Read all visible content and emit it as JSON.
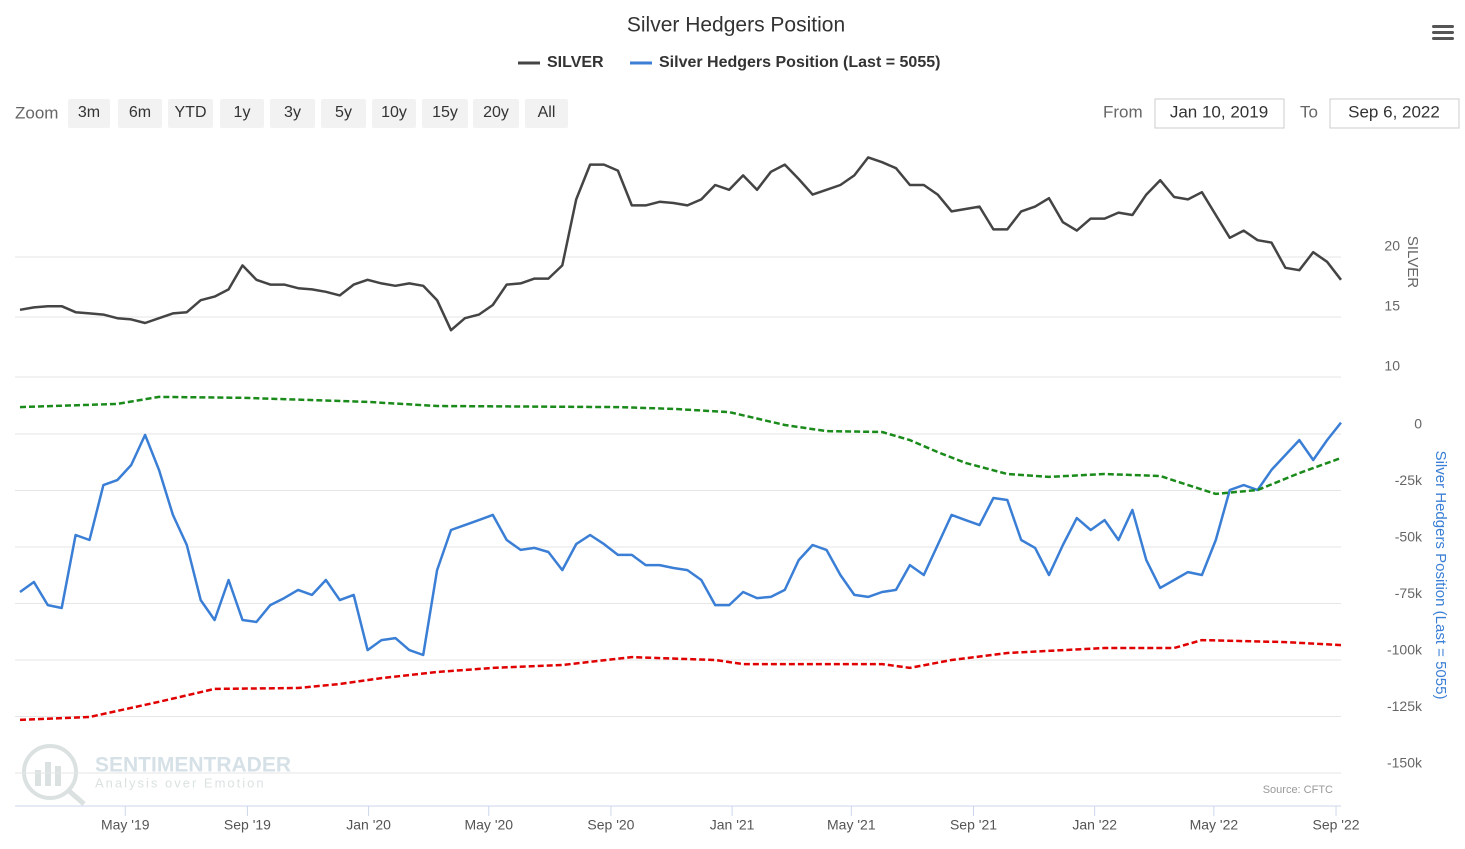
{
  "ui": {
    "zoom_label": "Zoom",
    "zoom_buttons": [
      "3m",
      "6m",
      "YTD",
      "1y",
      "3y",
      "5y",
      "10y",
      "15y",
      "20y",
      "All"
    ],
    "from_label": "From",
    "from_value": "Jan 10, 2019",
    "to_label": "To",
    "to_value": "Sep 6, 2022",
    "source": "Source: CFTC",
    "watermark": "SENTIMENTRADER",
    "watermark_tagline": "Analysis over Emotion"
  },
  "chart_data": {
    "type": "line",
    "title": "Silver Hedgers Position",
    "xlim": [
      "2019-01-10",
      "2022-09-06"
    ],
    "xticks": [
      {
        "value": "2019-05-01",
        "label": "May '19"
      },
      {
        "value": "2019-09-01",
        "label": "Sep '19"
      },
      {
        "value": "2020-01-01",
        "label": "Jan '20"
      },
      {
        "value": "2020-05-01",
        "label": "May '20"
      },
      {
        "value": "2020-09-01",
        "label": "Sep '20"
      },
      {
        "value": "2021-01-01",
        "label": "Jan '21"
      },
      {
        "value": "2021-05-01",
        "label": "May '21"
      },
      {
        "value": "2021-09-01",
        "label": "Sep '21"
      },
      {
        "value": "2022-01-01",
        "label": "Jan '22"
      },
      {
        "value": "2022-05-01",
        "label": "May '22"
      },
      {
        "value": "2022-09-01",
        "label": "Sep '22"
      }
    ],
    "ylabel": "SILVER",
    "ylim": [
      8,
      30
    ],
    "yticks": [
      10,
      15,
      20
    ],
    "y2label": "Silver Hedgers Position (Last = 5055)",
    "y2lim": [
      -165000,
      10000
    ],
    "y2ticks": [
      0,
      {
        "value": -25000,
        "label": "-25k"
      },
      {
        "value": -50000,
        "label": "-50k"
      },
      {
        "value": -75000,
        "label": "-75k"
      },
      {
        "value": -100000,
        "label": "-100k"
      },
      {
        "value": -125000,
        "label": "-125k"
      },
      {
        "value": -150000,
        "label": "-150k"
      }
    ],
    "grid": true,
    "legend": "top",
    "x": [
      "2019-01-15",
      "2019-01-29",
      "2019-02-12",
      "2019-02-26",
      "2019-03-12",
      "2019-03-26",
      "2019-04-09",
      "2019-04-23",
      "2019-05-07",
      "2019-05-21",
      "2019-06-04",
      "2019-06-18",
      "2019-07-02",
      "2019-07-16",
      "2019-07-30",
      "2019-08-13",
      "2019-08-27",
      "2019-09-10",
      "2019-09-24",
      "2019-10-08",
      "2019-10-22",
      "2019-11-05",
      "2019-11-19",
      "2019-12-03",
      "2019-12-17",
      "2019-12-31",
      "2020-01-14",
      "2020-01-28",
      "2020-02-11",
      "2020-02-25",
      "2020-03-10",
      "2020-03-24",
      "2020-04-07",
      "2020-04-21",
      "2020-05-05",
      "2020-05-19",
      "2020-06-02",
      "2020-06-16",
      "2020-06-30",
      "2020-07-14",
      "2020-07-28",
      "2020-08-11",
      "2020-08-25",
      "2020-09-08",
      "2020-09-22",
      "2020-10-06",
      "2020-10-20",
      "2020-11-03",
      "2020-11-17",
      "2020-12-01",
      "2020-12-15",
      "2020-12-29",
      "2021-01-12",
      "2021-01-26",
      "2021-02-09",
      "2021-02-23",
      "2021-03-09",
      "2021-03-23",
      "2021-04-06",
      "2021-04-20",
      "2021-05-04",
      "2021-05-18",
      "2021-06-01",
      "2021-06-15",
      "2021-06-29",
      "2021-07-13",
      "2021-07-27",
      "2021-08-10",
      "2021-08-24",
      "2021-09-07",
      "2021-09-21",
      "2021-10-05",
      "2021-10-19",
      "2021-11-02",
      "2021-11-16",
      "2021-11-30",
      "2021-12-14",
      "2021-12-28",
      "2022-01-11",
      "2022-01-25",
      "2022-02-08",
      "2022-02-22",
      "2022-03-08",
      "2022-03-22",
      "2022-04-05",
      "2022-04-19",
      "2022-05-03",
      "2022-05-17",
      "2022-05-31",
      "2022-06-14",
      "2022-06-28",
      "2022-07-12",
      "2022-07-26",
      "2022-08-09",
      "2022-08-23",
      "2022-09-06"
    ],
    "series": [
      {
        "name": "SILVER",
        "color": "#444444",
        "values": [
          15.6,
          15.8,
          15.9,
          15.9,
          15.4,
          15.3,
          15.2,
          14.9,
          14.8,
          14.5,
          14.9,
          15.3,
          15.4,
          16.4,
          16.7,
          17.3,
          19.3,
          18.1,
          17.7,
          17.7,
          17.4,
          17.3,
          17.1,
          16.8,
          17.7,
          18.1,
          17.8,
          17.6,
          17.8,
          17.6,
          16.4,
          13.9,
          14.9,
          15.2,
          16.0,
          17.7,
          17.8,
          18.2,
          18.2,
          19.3,
          24.8,
          27.7,
          27.7,
          27.2,
          24.3,
          24.3,
          24.6,
          24.5,
          24.3,
          24.8,
          26.0,
          25.6,
          26.8,
          25.6,
          27.1,
          27.7,
          26.5,
          25.2,
          25.6,
          26.0,
          26.8,
          28.3,
          27.9,
          27.4,
          26.0,
          26.0,
          25.2,
          23.8,
          24.0,
          24.2,
          22.3,
          22.3,
          23.8,
          24.2,
          24.9,
          22.9,
          22.2,
          23.2,
          23.2,
          23.7,
          23.5,
          25.2,
          26.4,
          25.0,
          24.8,
          25.4,
          23.5,
          21.6,
          22.2,
          21.4,
          21.2,
          19.1,
          18.9,
          20.4,
          19.6,
          18.1
        ]
      },
      {
        "name": "Silver Hedgers Position (Last = 5055)",
        "color": "#3a7fd5",
        "axis": "y2",
        "values": [
          -69900,
          -65500,
          -75700,
          -77000,
          -44700,
          -46900,
          -22600,
          -20400,
          -13700,
          -400,
          -15900,
          -35800,
          -49100,
          -73500,
          -82300,
          -64600,
          -82300,
          -83200,
          -75700,
          -72600,
          -69000,
          -71200,
          -64600,
          -73500,
          -71200,
          -95600,
          -91200,
          -90300,
          -95600,
          -97800,
          -60200,
          -42500,
          -40300,
          -38100,
          -35800,
          -46900,
          -51300,
          -50400,
          -52200,
          -60200,
          -48700,
          -44700,
          -48700,
          -53500,
          -53500,
          -58000,
          -58000,
          -59300,
          -60200,
          -64600,
          -75700,
          -75700,
          -69900,
          -72600,
          -72100,
          -69000,
          -55800,
          -49100,
          -51300,
          -62400,
          -71200,
          -72100,
          -69900,
          -69000,
          -58000,
          -62400,
          -49100,
          -35800,
          -38100,
          -40300,
          -28300,
          -29200,
          -46900,
          -50400,
          -62400,
          -49100,
          -37200,
          -42500,
          -38100,
          -46900,
          -33600,
          -55800,
          -68100,
          -64600,
          -61100,
          -62400,
          -46900,
          -24800,
          -22600,
          -24800,
          -15900,
          -9300,
          -2700,
          -11500,
          -2700,
          5055
        ]
      },
      {
        "color": "#1a8a1a",
        "axis": "y2",
        "dashed": true,
        "x": [
          "2019-01-15",
          "2019-04-23",
          "2019-06-04",
          "2019-08-27",
          "2019-12-31",
          "2020-03-10",
          "2020-09-08",
          "2020-11-03",
          "2020-12-29",
          "2021-02-23",
          "2021-04-06",
          "2021-06-01",
          "2021-06-29",
          "2021-07-27",
          "2021-08-24",
          "2021-10-05",
          "2021-11-16",
          "2022-01-11",
          "2022-03-08",
          "2022-04-05",
          "2022-05-03",
          "2022-06-14",
          "2022-07-26",
          "2022-09-06"
        ],
        "values": [
          11900,
          13300,
          16400,
          16000,
          14200,
          12400,
          11900,
          11100,
          9700,
          4000,
          1300,
          900,
          -2700,
          -8000,
          -12800,
          -17700,
          -19000,
          -17700,
          -18600,
          -22600,
          -26500,
          -24800,
          -17300,
          -10600
        ]
      },
      {
        "color": "#e00000",
        "axis": "y2",
        "dashed": true,
        "x": [
          "2019-01-15",
          "2019-03-26",
          "2019-06-04",
          "2019-07-30",
          "2019-10-22",
          "2019-12-03",
          "2020-01-14",
          "2020-03-10",
          "2020-05-05",
          "2020-07-14",
          "2020-09-22",
          "2020-12-15",
          "2021-01-12",
          "2021-06-01",
          "2021-06-29",
          "2021-08-10",
          "2021-10-05",
          "2022-01-11",
          "2022-03-22",
          "2022-04-19",
          "2022-07-12",
          "2022-09-06"
        ],
        "values": [
          -126500,
          -125200,
          -118500,
          -112800,
          -112400,
          -110600,
          -108000,
          -105300,
          -103500,
          -102200,
          -98700,
          -100000,
          -101800,
          -101800,
          -103500,
          -100000,
          -96900,
          -94700,
          -94700,
          -91200,
          -92100,
          -93400
        ]
      }
    ]
  }
}
